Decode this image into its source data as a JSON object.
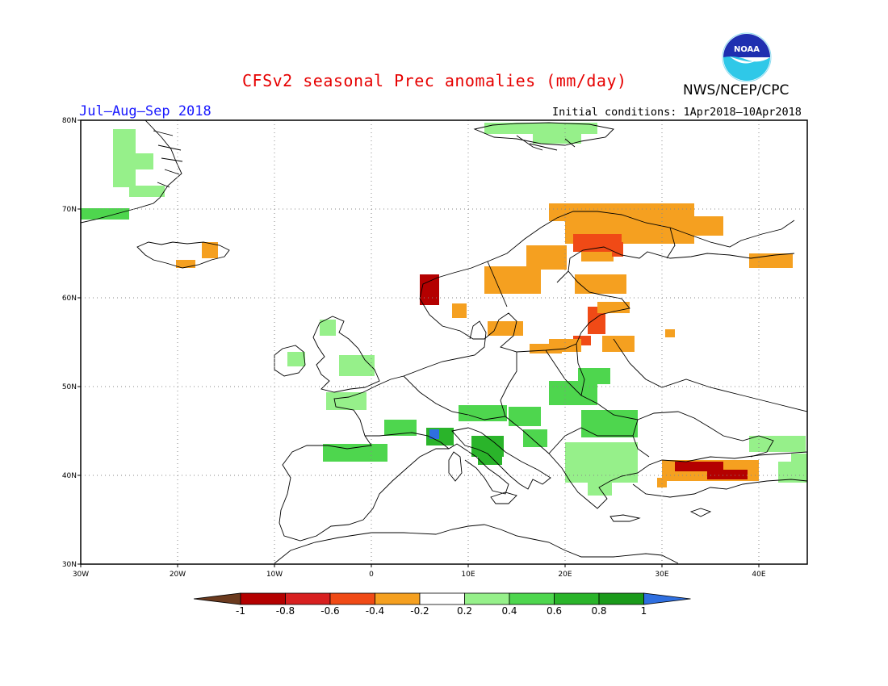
{
  "header": {
    "title": "CFSv2 seasonal Prec anomalies (mm/day)",
    "agency": "NWS/NCEP/CPC",
    "period": "Jul–Aug–Sep 2018",
    "initial_conditions": "Initial conditions: 1Apr2018–10Apr2018",
    "logo_text": "NOAA"
  },
  "axes": {
    "lat_labels": [
      "80N",
      "70N",
      "60N",
      "50N",
      "40N",
      "30N"
    ],
    "lon_labels": [
      "30W",
      "20W",
      "10W",
      "0",
      "10E",
      "20E",
      "30E",
      "40E"
    ],
    "lon_range": [
      -30,
      45
    ],
    "lat_range": [
      30,
      80
    ],
    "grid": "dotted"
  },
  "colorbar": {
    "labels": [
      "-1",
      "-0.8",
      "-0.6",
      "-0.4",
      "-0.2",
      "0.2",
      "0.4",
      "0.6",
      "0.8",
      "1"
    ],
    "colors": [
      "#6b3a1e",
      "#b40000",
      "#d82020",
      "#f04a16",
      "#f5a020",
      "#ffffff",
      "#96f08a",
      "#4ed64e",
      "#2ab42a",
      "#1a9a1a",
      "#2f6fe0"
    ]
  },
  "anomaly_regions": [
    {
      "region": "Greenland coast",
      "class": "0.2-0.4"
    },
    {
      "region": "Greenland coast south",
      "class": "0.4-0.6"
    },
    {
      "region": "Svalbard",
      "class": "0.2-0.4"
    },
    {
      "region": "Iceland",
      "class": "-0.4--0.2"
    },
    {
      "region": "Northern Scandinavia",
      "class": "-0.4--0.2"
    },
    {
      "region": "Finland",
      "class": "-0.6--0.4"
    },
    {
      "region": "Norway west coast",
      "class": "-0.8--0.6"
    },
    {
      "region": "Baltic coast",
      "class": "-0.6--0.4"
    },
    {
      "region": "Southern Sweden",
      "class": "-0.4--0.2"
    },
    {
      "region": "Poland/Baltic",
      "class": "-0.4--0.2"
    },
    {
      "region": "Ireland/UK",
      "class": "0.2-0.4"
    },
    {
      "region": "Alps/N Italy",
      "class": "0.4-0.6"
    },
    {
      "region": "Alps core",
      "class": "0.6-0.8"
    },
    {
      "region": "Western Alps",
      "class": ">1"
    },
    {
      "region": "Balkans",
      "class": "0.2-0.4"
    },
    {
      "region": "Turkey north",
      "class": "-0.4--0.2"
    },
    {
      "region": "Turkey north core",
      "class": "-0.8--0.6"
    },
    {
      "region": "Caucasus",
      "class": "0.2-0.4"
    }
  ]
}
